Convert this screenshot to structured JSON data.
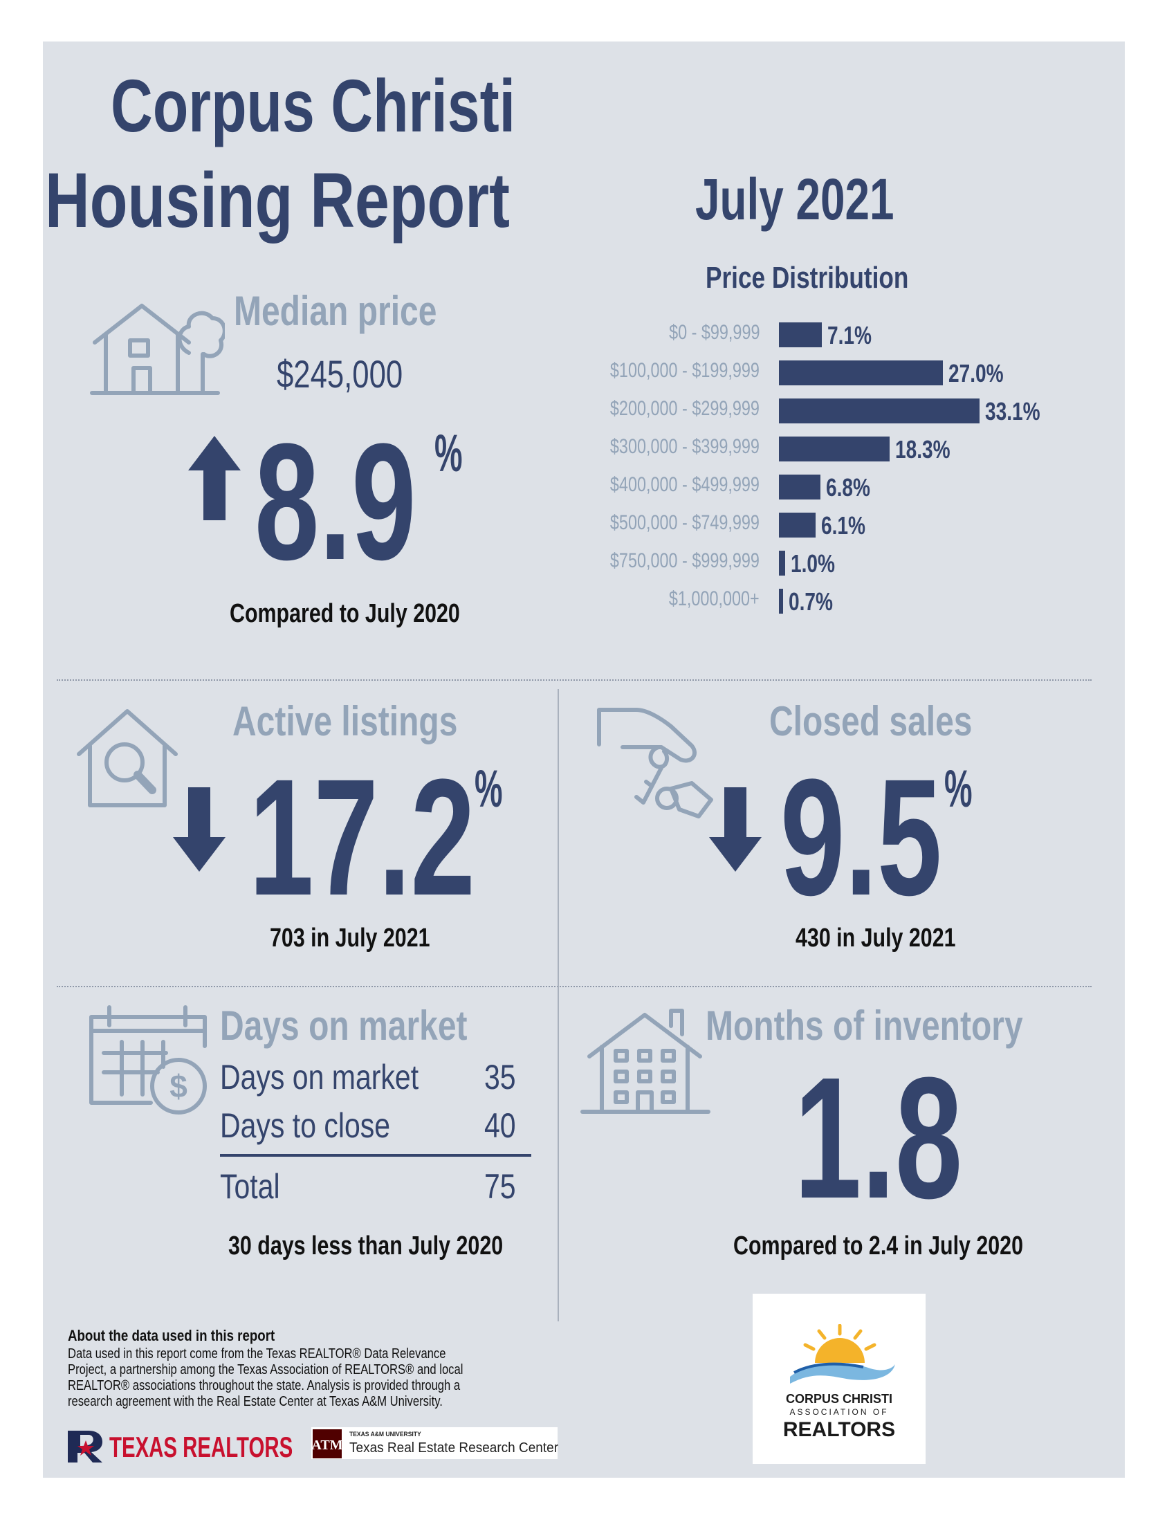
{
  "header": {
    "title_line1": "Corpus Christi",
    "title_line2": "Housing Report",
    "month": "July 2021"
  },
  "median": {
    "heading": "Median price",
    "price": "$245,000",
    "change": "8.9",
    "pct_sign": "%",
    "direction": "up",
    "note": "Compared to July 2020"
  },
  "chart_data": {
    "type": "bar",
    "title": "Price Distribution",
    "orientation": "horizontal",
    "categories": [
      "$0 - $99,999",
      "$100,000 - $199,999",
      "$200,000 - $299,999",
      "$300,000 - $399,999",
      "$400,000 - $499,999",
      "$500,000 - $749,999",
      "$750,000 - $999,999",
      "$1,000,000+"
    ],
    "values": [
      7.1,
      27.0,
      33.1,
      18.3,
      6.8,
      6.1,
      1.0,
      0.7
    ],
    "labels": [
      "7.1%",
      "27.0%",
      "33.1%",
      "18.3%",
      "6.8%",
      "6.1%",
      "1.0%",
      "0.7%"
    ],
    "xlabel": "",
    "ylabel": "",
    "xlim": [
      0,
      33.1
    ],
    "grid": false,
    "color": "#34446c"
  },
  "active": {
    "heading": "Active listings",
    "change": "17.2",
    "pct_sign": "%",
    "direction": "down",
    "note": "703 in July 2021"
  },
  "closed": {
    "heading": "Closed sales",
    "change": "9.5",
    "pct_sign": "%",
    "direction": "down",
    "note": "430 in July 2021"
  },
  "dom": {
    "heading": "Days on market",
    "rows": [
      {
        "label": "Days on market",
        "value": "35"
      },
      {
        "label": "Days to close",
        "value": "40"
      }
    ],
    "total_label": "Total",
    "total_value": "75",
    "note": "30 days less than July 2020"
  },
  "inventory": {
    "heading": "Months of inventory",
    "value": "1.8",
    "note": "Compared to 2.4 in July 2020"
  },
  "footer": {
    "about_title": "About the data used in this report",
    "about_body": "Data used in this report come from the Texas REALTOR® Data Relevance Project, a partnership among the Texas Association of REALTORS® and local REALTOR® associations throughout the state. Analysis is provided through a research agreement with the Real Estate Center at Texas A&M University.",
    "logo1_text": "TEXAS REALTORS",
    "logo2_small": "TEXAS A&M UNIVERSITY",
    "logo2_text": "Texas Real Estate Research Center",
    "assoc_line1": "CORPUS CHRISTI",
    "assoc_line2": "ASSOCIATION OF",
    "assoc_line3": "REALTORS"
  },
  "colors": {
    "navy": "#34446c",
    "steel": "#93a4b8",
    "panel": "#dde1e7"
  }
}
